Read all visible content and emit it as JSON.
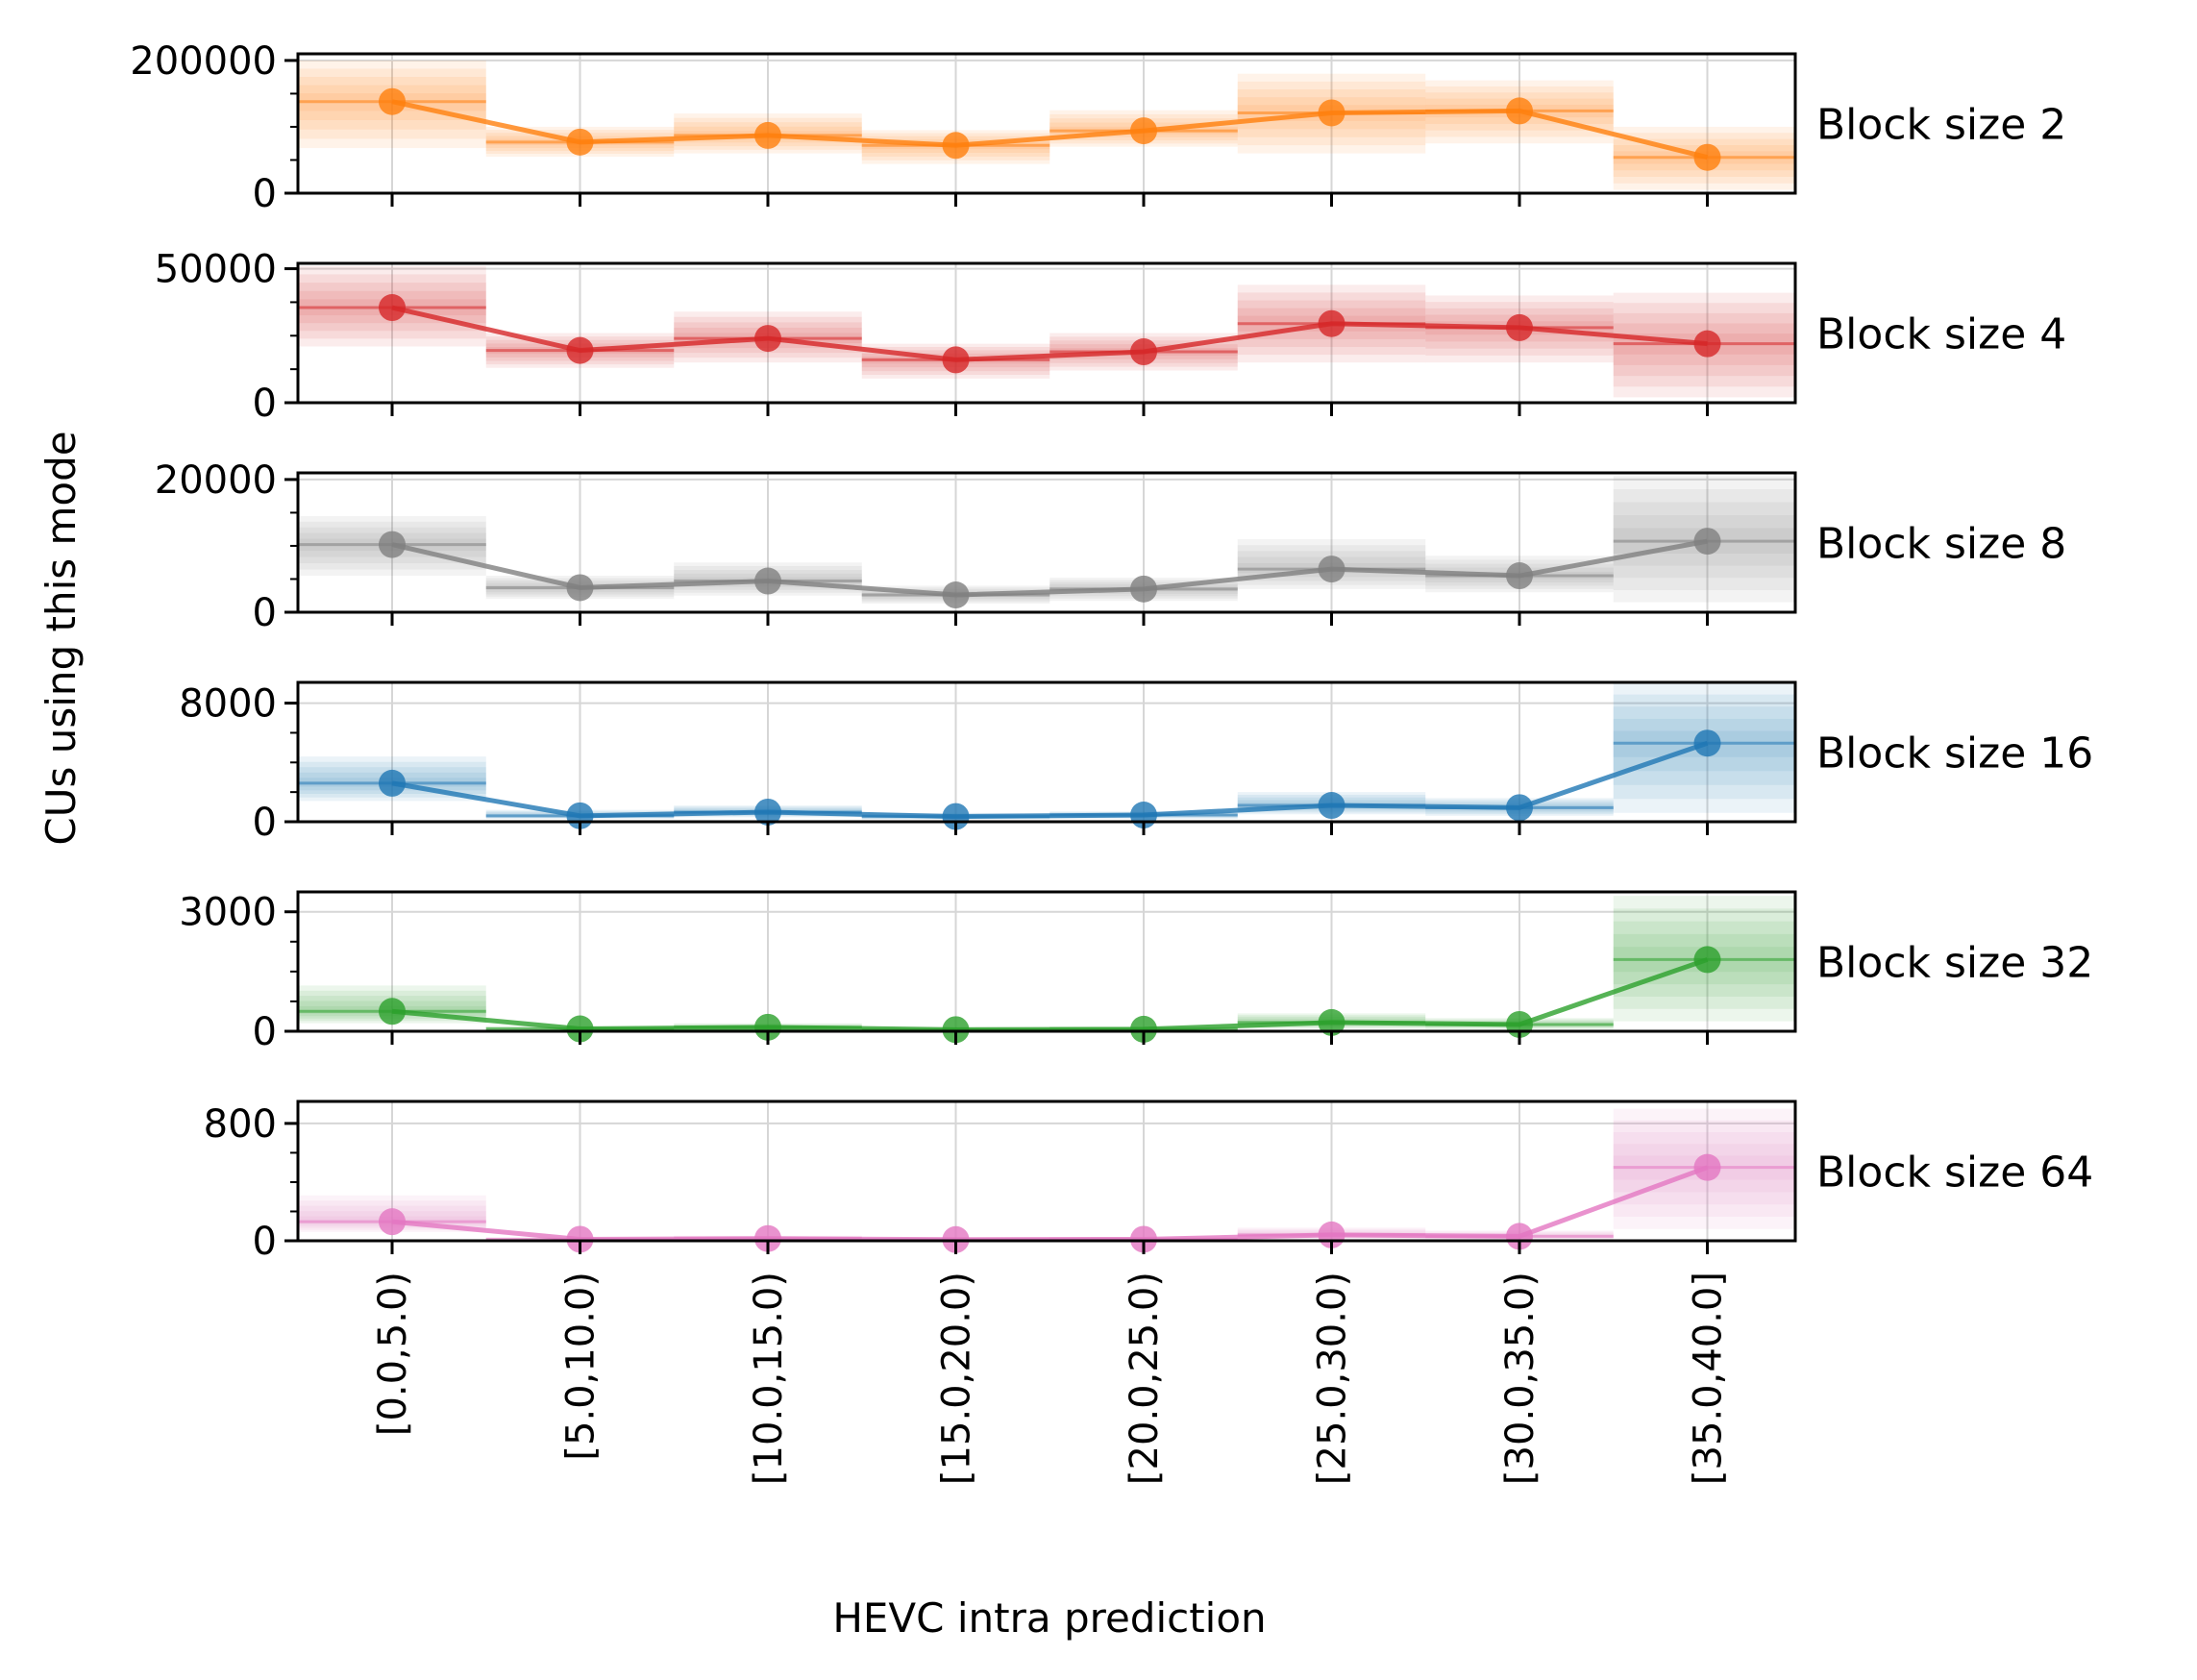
{
  "chart_data": {
    "type": "line",
    "xlabel": "HEVC intra prediction",
    "ylabel": "CUs using this mode",
    "categories": [
      "[0.0,5.0)",
      "[5.0,10.0)",
      "[10.0,15.0)",
      "[15.0,20.0)",
      "[20.0,25.0)",
      "[25.0,30.0)",
      "[30.0,35.0)",
      "[35.0,40.0]"
    ],
    "grid": true,
    "panels": [
      {
        "label": "Block size 2",
        "color": "#ff7f0e",
        "ylim": [
          0,
          210000
        ],
        "yticks": [
          0,
          200000
        ],
        "tick_labels": [
          "0",
          "200000"
        ],
        "values": [
          138000,
          77000,
          87000,
          72000,
          94000,
          121000,
          124000,
          54000
        ],
        "band_low": [
          68000,
          55000,
          60000,
          44000,
          70000,
          60000,
          75000,
          5000
        ],
        "band_high": [
          200000,
          100000,
          120000,
          95000,
          125000,
          180000,
          170000,
          100000
        ]
      },
      {
        "label": "Block size 4",
        "color": "#d62728",
        "ylim": [
          0,
          52000
        ],
        "yticks": [
          0,
          50000
        ],
        "tick_labels": [
          "0",
          "50000"
        ],
        "values": [
          35500,
          19500,
          24000,
          16000,
          19000,
          29500,
          28000,
          22000
        ],
        "band_low": [
          21000,
          13000,
          15000,
          9000,
          12000,
          15000,
          15000,
          2000
        ],
        "band_high": [
          51000,
          26000,
          34000,
          22000,
          26000,
          44000,
          40000,
          41000
        ]
      },
      {
        "label": "Block size 8",
        "color": "#7f7f7f",
        "ylim": [
          0,
          21000
        ],
        "yticks": [
          0,
          20000
        ],
        "tick_labels": [
          "0",
          "20000"
        ],
        "values": [
          10200,
          3700,
          4700,
          2600,
          3500,
          6500,
          5500,
          10700
        ],
        "band_low": [
          5500,
          2000,
          2500,
          1300,
          1700,
          3500,
          3000,
          1500
        ],
        "band_high": [
          14500,
          5500,
          7500,
          4000,
          5200,
          11000,
          8500,
          20500
        ]
      },
      {
        "label": "Block size 16",
        "color": "#1f77b4",
        "ylim": [
          0,
          9400
        ],
        "yticks": [
          0,
          8000
        ],
        "tick_labels": [
          "0",
          "8000"
        ],
        "values": [
          2600,
          400,
          650,
          350,
          450,
          1100,
          950,
          5300
        ],
        "band_low": [
          1400,
          200,
          300,
          150,
          200,
          500,
          400,
          600
        ],
        "band_high": [
          4400,
          800,
          1100,
          600,
          700,
          2000,
          1600,
          9400
        ]
      },
      {
        "label": "Block size 32",
        "color": "#2ca02c",
        "ylim": [
          0,
          3500
        ],
        "yticks": [
          0,
          3000
        ],
        "tick_labels": [
          "0",
          "3000"
        ],
        "values": [
          500,
          60,
          100,
          40,
          50,
          220,
          170,
          1800
        ],
        "band_low": [
          200,
          20,
          40,
          10,
          20,
          60,
          50,
          250
        ],
        "band_high": [
          1150,
          130,
          200,
          90,
          120,
          450,
          330,
          3400
        ]
      },
      {
        "label": "Block size 64",
        "color": "#e377c2",
        "ylim": [
          0,
          950
        ],
        "yticks": [
          0,
          800
        ],
        "tick_labels": [
          "0",
          "800"
        ],
        "values": [
          130,
          10,
          15,
          8,
          10,
          40,
          30,
          500
        ],
        "band_low": [
          60,
          3,
          5,
          2,
          3,
          10,
          10,
          80
        ],
        "band_high": [
          310,
          25,
          35,
          20,
          25,
          90,
          70,
          900
        ]
      }
    ]
  }
}
